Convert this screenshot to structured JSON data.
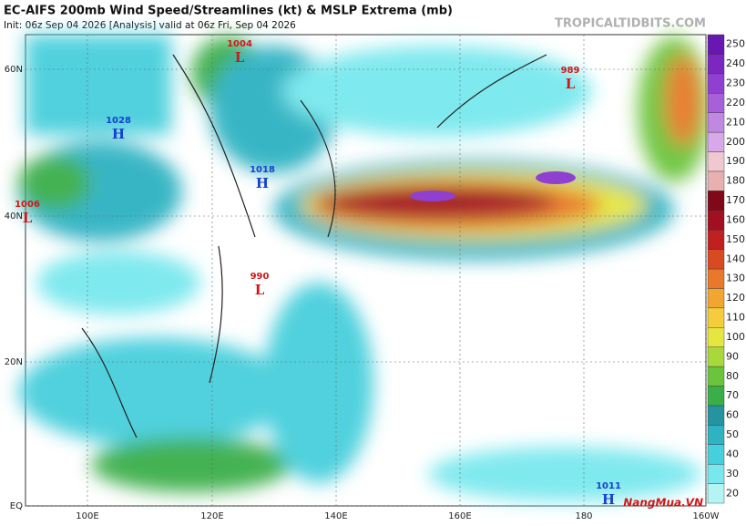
{
  "header": {
    "title": "EC-AIFS 200mb Wind Speed/Streamlines (kt) & MSLP Extrema (mb)",
    "subtitle": "Init: 06z Sep 04 2026   [Analysis]   valid at 06z Fri, Sep 04 2026",
    "source": "TROPICALTIDBITS.COM"
  },
  "map": {
    "lat_labels": [
      "60N",
      "40N",
      "20N",
      "EQ"
    ],
    "lon_labels": [
      "100E",
      "120E",
      "140E",
      "160E",
      "180",
      "160W"
    ],
    "pressure_centers": [
      {
        "value": "1004",
        "type": "L"
      },
      {
        "value": "989",
        "type": "L"
      },
      {
        "value": "1028",
        "type": "H"
      },
      {
        "value": "1018",
        "type": "H"
      },
      {
        "value": "1006",
        "type": "L"
      },
      {
        "value": "990",
        "type": "L"
      },
      {
        "value": "1011",
        "type": "H"
      }
    ]
  },
  "colorbar": {
    "levels": [
      20,
      30,
      40,
      50,
      60,
      70,
      80,
      90,
      100,
      110,
      120,
      130,
      140,
      150,
      160,
      170,
      180,
      190,
      200,
      210,
      220,
      230,
      240,
      250
    ],
    "colors": [
      "#b4f4f4",
      "#78e8ee",
      "#46cfdc",
      "#2fb2c2",
      "#25949e",
      "#3aae48",
      "#6cc43c",
      "#a8d83a",
      "#e6e640",
      "#f4cc3c",
      "#f2a632",
      "#e8782a",
      "#d84a22",
      "#c02020",
      "#a01020",
      "#800818",
      "#e8b0b0",
      "#f0c8d0",
      "#d8a8e8",
      "#c088e0",
      "#a860d8",
      "#9040d0",
      "#7c28c0",
      "#6818b0"
    ]
  },
  "watermark": "NangMua.VN"
}
